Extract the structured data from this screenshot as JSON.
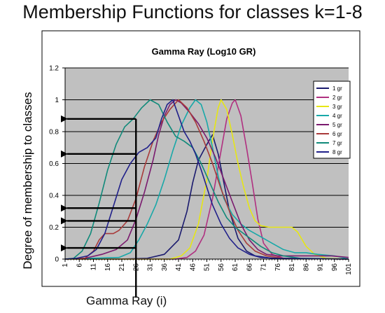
{
  "slide": {
    "title": "Membership Functions for classes k=1-8",
    "annotation": "Gamma Ray (i)"
  },
  "chart_data": {
    "type": "line",
    "title": "Gamma Ray (Log10 GR)",
    "xlabel": "",
    "ylabel": "Degree of membership to classes",
    "x_ticks": [
      1,
      6,
      11,
      16,
      21,
      26,
      31,
      36,
      41,
      46,
      51,
      56,
      61,
      66,
      71,
      76,
      81,
      86,
      91,
      96,
      101
    ],
    "xlim": [
      1,
      101
    ],
    "ylim": [
      0,
      1.2
    ],
    "y_ticks": [
      0,
      0.2,
      0.4,
      0.6,
      0.8,
      1,
      1.2
    ],
    "grid": "horizontal",
    "background": "#c0c0c0",
    "legend_position": "right",
    "series": [
      {
        "name": "1 gr",
        "color": "#1a1a6e",
        "points": [
          [
            1,
            0
          ],
          [
            20,
            0
          ],
          [
            30,
            0.005
          ],
          [
            36,
            0.03
          ],
          [
            41,
            0.12
          ],
          [
            44,
            0.3
          ],
          [
            46,
            0.48
          ],
          [
            48,
            0.62
          ],
          [
            51,
            0.72
          ],
          [
            53,
            0.78
          ],
          [
            55,
            0.66
          ],
          [
            57,
            0.48
          ],
          [
            59,
            0.3
          ],
          [
            62,
            0.13
          ],
          [
            65,
            0.05
          ],
          [
            68,
            0.02
          ],
          [
            74,
            0.005
          ],
          [
            101,
            0
          ]
        ]
      },
      {
        "name": "2 gr",
        "color": "#b03080",
        "points": [
          [
            1,
            0
          ],
          [
            40,
            0
          ],
          [
            44,
            0.01
          ],
          [
            47,
            0.05
          ],
          [
            50,
            0.15
          ],
          [
            53,
            0.38
          ],
          [
            56,
            0.68
          ],
          [
            58,
            0.88
          ],
          [
            60,
            0.98
          ],
          [
            61,
            1.0
          ],
          [
            63,
            0.9
          ],
          [
            65,
            0.7
          ],
          [
            67,
            0.48
          ],
          [
            69,
            0.25
          ],
          [
            71,
            0.1
          ],
          [
            74,
            0.03
          ],
          [
            78,
            0.005
          ],
          [
            101,
            0
          ]
        ]
      },
      {
        "name": "3 gr",
        "color": "#e6e614",
        "points": [
          [
            1,
            0
          ],
          [
            38,
            0
          ],
          [
            42,
            0.02
          ],
          [
            45,
            0.07
          ],
          [
            48,
            0.22
          ],
          [
            51,
            0.5
          ],
          [
            53,
            0.75
          ],
          [
            55,
            0.95
          ],
          [
            56,
            1.0
          ],
          [
            58,
            0.94
          ],
          [
            60,
            0.78
          ],
          [
            62,
            0.6
          ],
          [
            64,
            0.45
          ],
          [
            66,
            0.32
          ],
          [
            68,
            0.24
          ],
          [
            70,
            0.21
          ],
          [
            73,
            0.2
          ],
          [
            76,
            0.2
          ],
          [
            79,
            0.2
          ],
          [
            81,
            0.2
          ],
          [
            83,
            0.17
          ],
          [
            86,
            0.08
          ],
          [
            89,
            0.03
          ],
          [
            93,
            0.005
          ],
          [
            101,
            0
          ]
        ]
      },
      {
        "name": "4 gr",
        "color": "#18a8a8",
        "points": [
          [
            1,
            0
          ],
          [
            20,
            0.01
          ],
          [
            24,
            0.04
          ],
          [
            27,
            0.12
          ],
          [
            30,
            0.22
          ],
          [
            33,
            0.34
          ],
          [
            36,
            0.5
          ],
          [
            39,
            0.68
          ],
          [
            42,
            0.84
          ],
          [
            45,
            0.95
          ],
          [
            47,
            1.0
          ],
          [
            49,
            0.97
          ],
          [
            51,
            0.86
          ],
          [
            53,
            0.7
          ],
          [
            55,
            0.52
          ],
          [
            57,
            0.38
          ],
          [
            60,
            0.28
          ],
          [
            63,
            0.22
          ],
          [
            66,
            0.18
          ],
          [
            70,
            0.14
          ],
          [
            74,
            0.1
          ],
          [
            78,
            0.06
          ],
          [
            82,
            0.04
          ],
          [
            86,
            0.04
          ],
          [
            90,
            0.03
          ],
          [
            96,
            0.02
          ],
          [
            101,
            0
          ]
        ]
      },
      {
        "name": "5 gr",
        "color": "#7a1a6e",
        "points": [
          [
            1,
            0
          ],
          [
            8,
            0.005
          ],
          [
            14,
            0.03
          ],
          [
            19,
            0.06
          ],
          [
            23,
            0.12
          ],
          [
            26,
            0.25
          ],
          [
            29,
            0.42
          ],
          [
            32,
            0.62
          ],
          [
            34,
            0.78
          ],
          [
            36,
            0.9
          ],
          [
            38,
            0.97
          ],
          [
            40,
            1.0
          ],
          [
            42,
            0.98
          ],
          [
            45,
            0.92
          ],
          [
            48,
            0.85
          ],
          [
            51,
            0.76
          ],
          [
            54,
            0.64
          ],
          [
            57,
            0.5
          ],
          [
            60,
            0.36
          ],
          [
            63,
            0.22
          ],
          [
            66,
            0.12
          ],
          [
            69,
            0.06
          ],
          [
            72,
            0.03
          ],
          [
            76,
            0.02
          ],
          [
            82,
            0.02
          ],
          [
            90,
            0.02
          ],
          [
            95,
            0.02
          ],
          [
            101,
            0.01
          ]
        ]
      },
      {
        "name": "6 gr",
        "color": "#a83a3a",
        "points": [
          [
            1,
            0
          ],
          [
            8,
            0.005
          ],
          [
            11,
            0.05
          ],
          [
            13,
            0.12
          ],
          [
            15,
            0.16
          ],
          [
            18,
            0.16
          ],
          [
            20,
            0.18
          ],
          [
            23,
            0.24
          ],
          [
            26,
            0.38
          ],
          [
            29,
            0.58
          ],
          [
            32,
            0.74
          ],
          [
            35,
            0.86
          ],
          [
            38,
            0.94
          ],
          [
            41,
            1.0
          ],
          [
            44,
            0.95
          ],
          [
            47,
            0.86
          ],
          [
            50,
            0.74
          ],
          [
            53,
            0.6
          ],
          [
            56,
            0.44
          ],
          [
            59,
            0.3
          ],
          [
            62,
            0.18
          ],
          [
            65,
            0.1
          ],
          [
            68,
            0.05
          ],
          [
            72,
            0.02
          ],
          [
            78,
            0.005
          ],
          [
            101,
            0
          ]
        ]
      },
      {
        "name": "7 gr",
        "color": "#108a7a",
        "points": [
          [
            1,
            0
          ],
          [
            4,
            0.005
          ],
          [
            7,
            0.05
          ],
          [
            10,
            0.16
          ],
          [
            13,
            0.35
          ],
          [
            16,
            0.56
          ],
          [
            19,
            0.72
          ],
          [
            22,
            0.83
          ],
          [
            25,
            0.88
          ],
          [
            28,
            0.95
          ],
          [
            31,
            1.0
          ],
          [
            34,
            0.97
          ],
          [
            37,
            0.86
          ],
          [
            40,
            0.77
          ],
          [
            43,
            0.74
          ],
          [
            46,
            0.7
          ],
          [
            49,
            0.6
          ],
          [
            52,
            0.48
          ],
          [
            55,
            0.36
          ],
          [
            58,
            0.26
          ],
          [
            61,
            0.2
          ],
          [
            64,
            0.16
          ],
          [
            67,
            0.12
          ],
          [
            70,
            0.08
          ],
          [
            74,
            0.04
          ],
          [
            78,
            0.02
          ],
          [
            84,
            0.005
          ],
          [
            101,
            0
          ]
        ]
      },
      {
        "name": "8 gr",
        "color": "#20208a",
        "points": [
          [
            1,
            0
          ],
          [
            5,
            0.005
          ],
          [
            9,
            0.02
          ],
          [
            12,
            0.06
          ],
          [
            15,
            0.16
          ],
          [
            18,
            0.33
          ],
          [
            21,
            0.5
          ],
          [
            24,
            0.6
          ],
          [
            27,
            0.67
          ],
          [
            30,
            0.7
          ],
          [
            33,
            0.76
          ],
          [
            35,
            0.88
          ],
          [
            37,
            0.97
          ],
          [
            39,
            1.0
          ],
          [
            41,
            0.9
          ],
          [
            43,
            0.8
          ],
          [
            45,
            0.74
          ],
          [
            47,
            0.66
          ],
          [
            49,
            0.56
          ],
          [
            51,
            0.45
          ],
          [
            53,
            0.34
          ],
          [
            56,
            0.22
          ],
          [
            59,
            0.13
          ],
          [
            62,
            0.07
          ],
          [
            66,
            0.03
          ],
          [
            70,
            0.01
          ],
          [
            76,
            0.005
          ],
          [
            101,
            0
          ]
        ]
      }
    ],
    "arrows_at_y": [
      0.88,
      0.66,
      0.32,
      0.24,
      0.07
    ],
    "marker_x": 26
  }
}
